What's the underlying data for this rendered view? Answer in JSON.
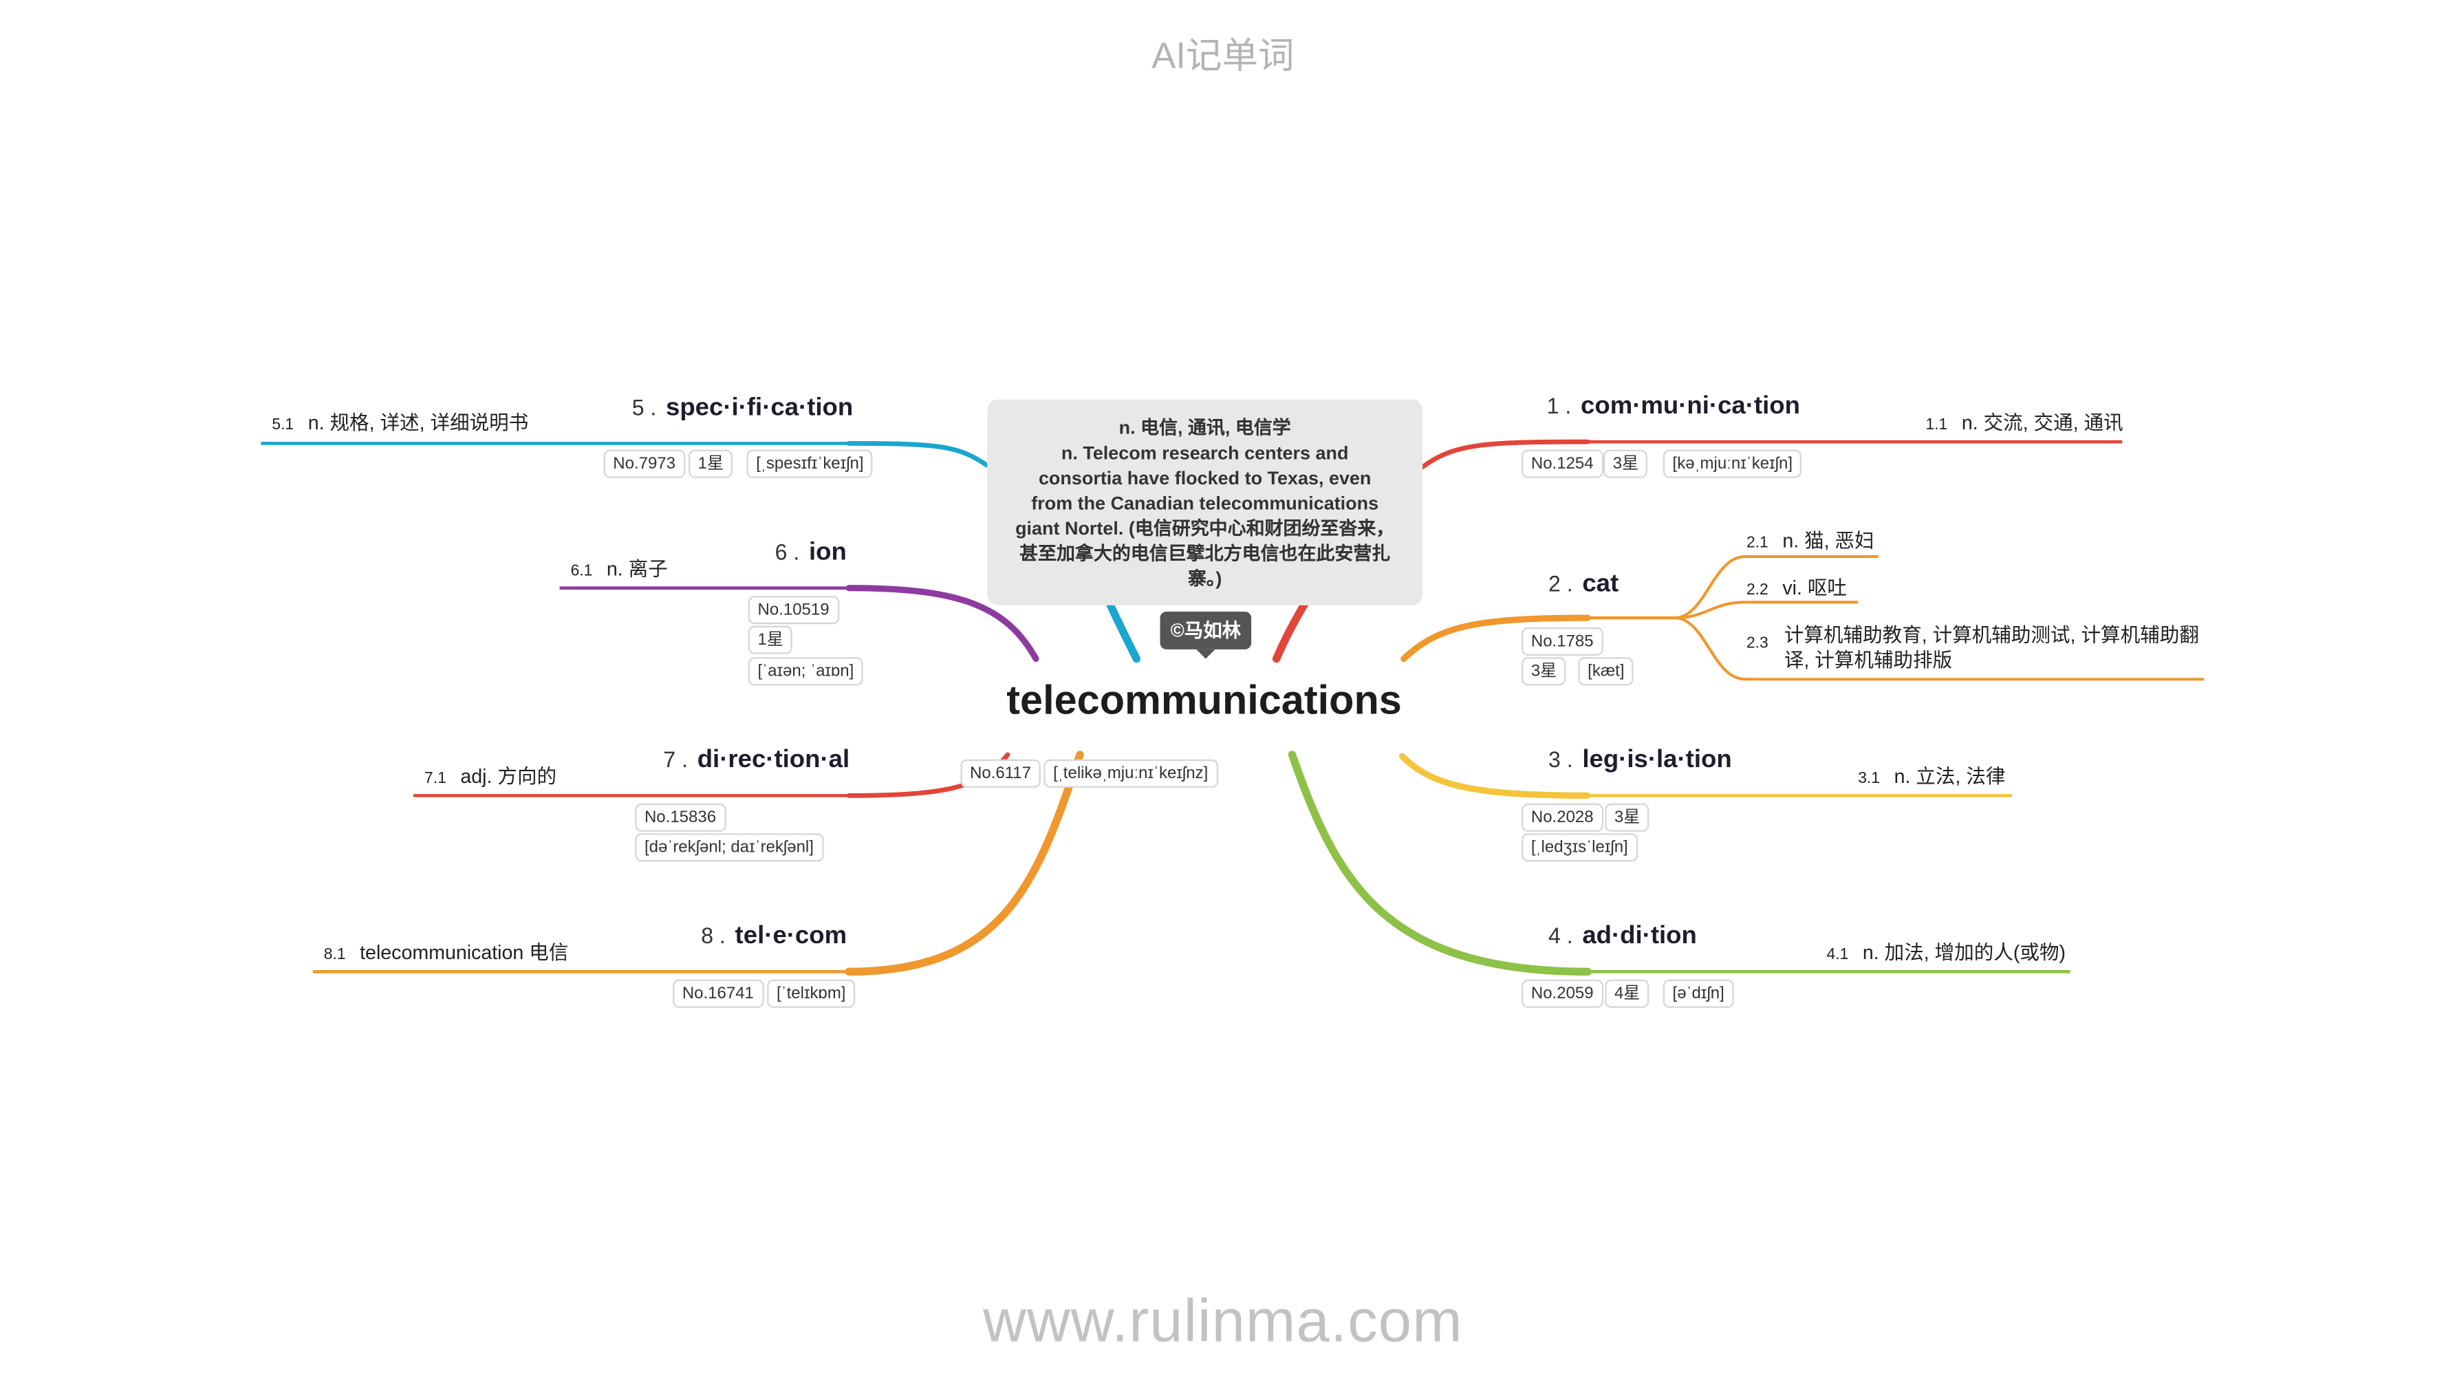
{
  "header": {
    "title": "AI记单词"
  },
  "footer": {
    "url": "www.rulinma.com"
  },
  "center": {
    "word": "telecommunications",
    "no": "No.6117",
    "phonetic": "[ˌtelikəˌmjuːnɪˈkeɪʃnz]",
    "definition_lines": [
      "n. 电信, 通讯, 电信学",
      "n. Telecom research centers and",
      "consortia have flocked to Texas, even",
      "from the Canadian telecommunications",
      "giant Nortel. (电信研究中心和财团纷至沓来，",
      "甚至加拿大的电信巨擘北方电信也在此安营扎",
      "寨。)"
    ],
    "copyright": "©马如林"
  },
  "colors": {
    "b1": "#e2453a",
    "b2": "#f0972d",
    "b3": "#f4c43a",
    "b4": "#8dc147",
    "b5": "#1aa6d0",
    "b6": "#8e3b9f",
    "b7": "#e2453a",
    "b8": "#f0972d"
  },
  "branches": [
    {
      "num": "1 .",
      "word": "com·mu·ni·ca·tion",
      "tags": [
        "No.1254",
        "3星",
        "[kəˌmjuːnɪˈkeɪʃn]"
      ],
      "meanings": [
        {
          "num": "1.1",
          "text": "n. 交流, 交通, 通讯"
        }
      ]
    },
    {
      "num": "2 .",
      "word": "cat",
      "tags": [
        "No.1785",
        "3星",
        "[kæt]"
      ],
      "meanings": [
        {
          "num": "2.1",
          "text": "n. 猫, 恶妇"
        },
        {
          "num": "2.2",
          "text": "vi. 呕吐"
        },
        {
          "num": "2.3",
          "text": "计算机辅助教育, 计算机辅助测试, 计算机辅助翻译, 计算机辅助排版"
        }
      ]
    },
    {
      "num": "3 .",
      "word": "leg·is·la·tion",
      "tags": [
        "No.2028",
        "3星",
        "[ˌledʒɪsˈleɪʃn]"
      ],
      "meanings": [
        {
          "num": "3.1",
          "text": "n. 立法, 法律"
        }
      ]
    },
    {
      "num": "4 .",
      "word": "ad·di·tion",
      "tags": [
        "No.2059",
        "4星",
        "[əˈdɪʃn]"
      ],
      "meanings": [
        {
          "num": "4.1",
          "text": "n. 加法, 增加的人(或物)"
        }
      ]
    },
    {
      "num": "5 .",
      "word": "spec·i·fi·ca·tion",
      "tags": [
        "No.7973",
        "1星",
        "[ˌspesɪfɪˈkeɪʃn]"
      ],
      "meanings": [
        {
          "num": "5.1",
          "text": "n. 规格, 详述, 详细说明书"
        }
      ]
    },
    {
      "num": "6 .",
      "word": "ion",
      "tags": [
        "No.10519",
        "1星",
        "[ˈaɪən; ˈaɪɒn]"
      ],
      "meanings": [
        {
          "num": "6.1",
          "text": "n. 离子"
        }
      ]
    },
    {
      "num": "7 .",
      "word": "di·rec·tion·al",
      "tags": [
        "No.15836",
        "[dəˈrekʃənl; daɪˈrekʃənl]"
      ],
      "meanings": [
        {
          "num": "7.1",
          "text": "adj. 方向的"
        }
      ]
    },
    {
      "num": "8 .",
      "word": "tel·e·com",
      "tags": [
        "No.16741",
        "[ˈtelɪkɒm]"
      ],
      "meanings": [
        {
          "num": "8.1",
          "text": "telecommunication 电信"
        }
      ]
    }
  ]
}
